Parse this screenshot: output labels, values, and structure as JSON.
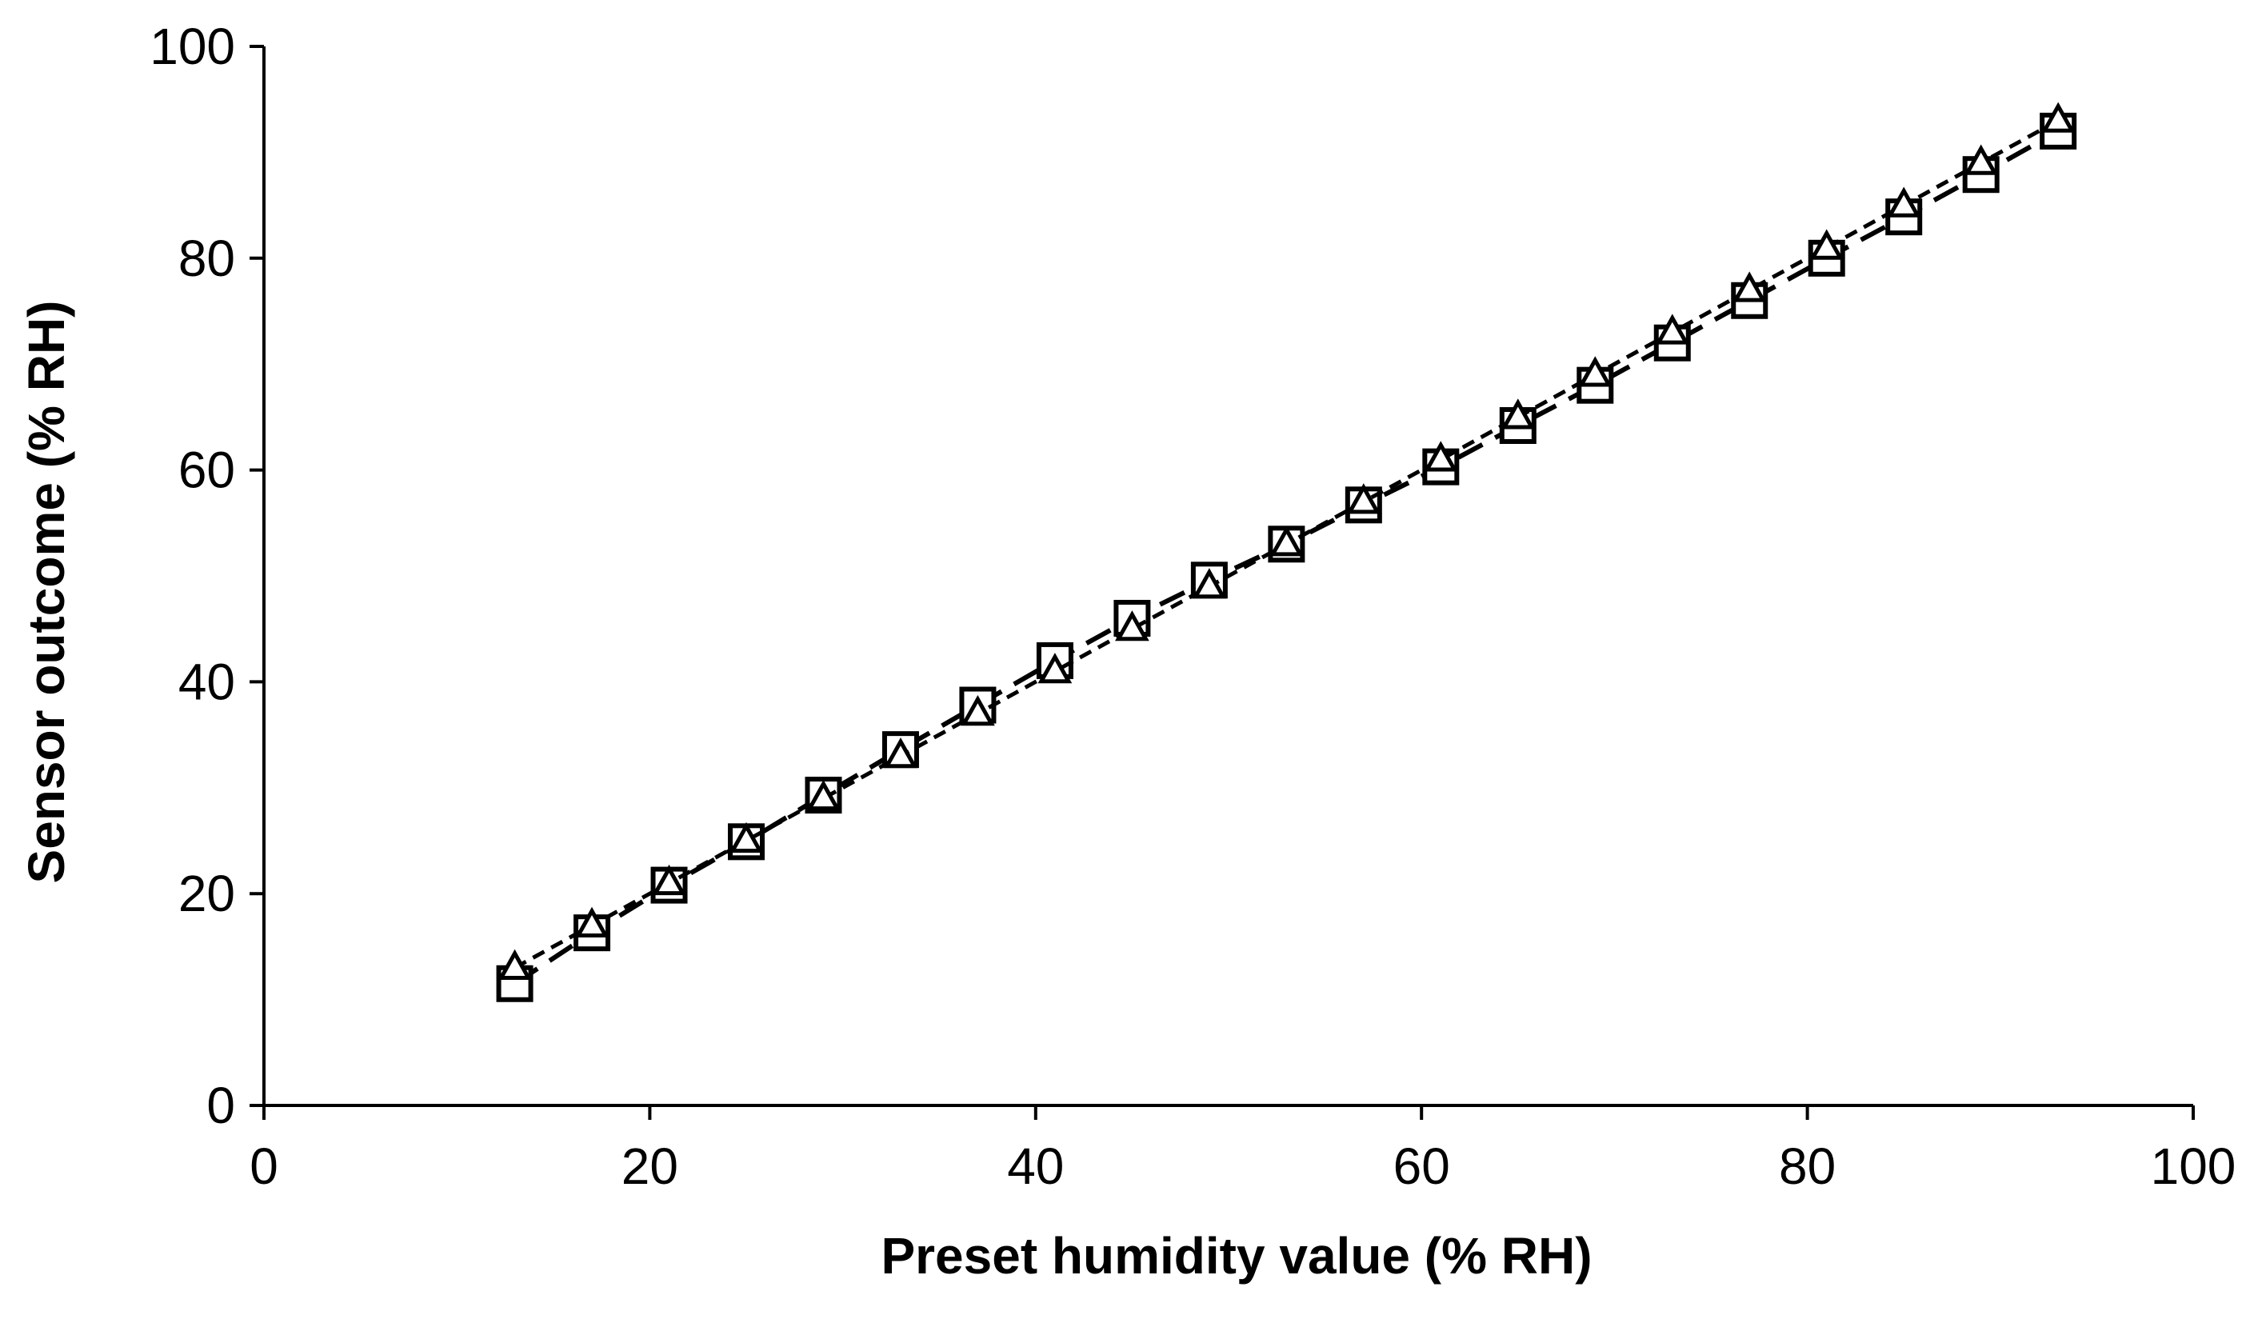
{
  "chart_data": {
    "type": "line",
    "title": "",
    "xlabel": "Preset humidity value (% RH)",
    "ylabel": "Sensor outcome (%  RH)",
    "xlim": [
      0,
      100
    ],
    "ylim": [
      0,
      100
    ],
    "x_ticks": [
      0,
      20,
      40,
      60,
      80,
      100
    ],
    "y_ticks": [
      0,
      20,
      40,
      60,
      80,
      100
    ],
    "grid": false,
    "legend": "none",
    "series": [
      {
        "marker": "square",
        "line": "dashed",
        "color": "#000000",
        "x": [
          13,
          17,
          21,
          25,
          29,
          33,
          37,
          41,
          45,
          49,
          53,
          57,
          61,
          65,
          69,
          73,
          77,
          81,
          85,
          89,
          93
        ],
        "y": [
          11.5,
          16.3,
          20.8,
          24.9,
          29.3,
          33.6,
          37.8,
          42.0,
          46.0,
          49.6,
          53.0,
          56.7,
          60.3,
          64.2,
          68.0,
          72.0,
          76.0,
          80.0,
          83.9,
          87.9,
          92.0
        ]
      },
      {
        "marker": "triangle",
        "line": "dotted",
        "color": "#000000",
        "x": [
          13,
          17,
          21,
          25,
          29,
          33,
          37,
          41,
          45,
          49,
          53,
          57,
          61,
          65,
          69,
          73,
          77,
          81,
          85,
          89,
          93
        ],
        "y": [
          13.0,
          17.0,
          21.0,
          25.0,
          29.0,
          33.0,
          37.0,
          41.0,
          45.0,
          49.0,
          53.0,
          57.0,
          61.0,
          65.0,
          69.0,
          73.0,
          77.0,
          81.0,
          85.0,
          89.0,
          93.0
        ]
      }
    ]
  }
}
